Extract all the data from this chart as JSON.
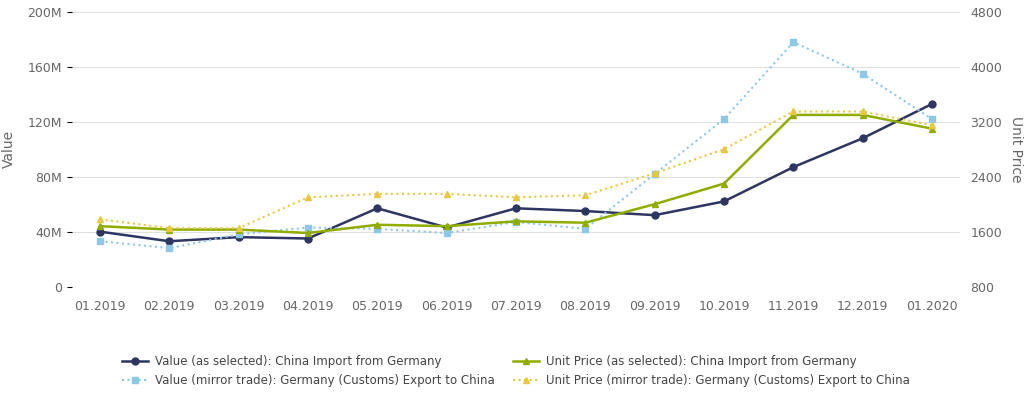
{
  "x_labels": [
    "01.2019",
    "02.2019",
    "03.2019",
    "04.2019",
    "05.2019",
    "06.2019",
    "07.2019",
    "08.2019",
    "09.2019",
    "10.2019",
    "11.2019",
    "12.2019",
    "01.2020"
  ],
  "value_china_import": [
    40000000.0,
    33000000.0,
    36000000.0,
    35000000.0,
    57000000.0,
    43000000.0,
    57000000.0,
    55000000.0,
    52000000.0,
    62000000.0,
    87000000.0,
    108000000.0,
    133000000.0
  ],
  "value_mirror_trade": [
    33000000.0,
    28000000.0,
    38000000.0,
    43000000.0,
    42000000.0,
    39000000.0,
    47000000.0,
    42000000.0,
    82000000.0,
    122000000.0,
    178000000.0,
    155000000.0,
    122000000.0
  ],
  "unit_price_china_import": [
    1680,
    1630,
    1630,
    1580,
    1700,
    1680,
    1750,
    1730,
    2000,
    2300,
    3300,
    3300,
    3100
  ],
  "unit_price_mirror_trade": [
    1780,
    1650,
    1650,
    2100,
    2150,
    2150,
    2100,
    2130,
    2450,
    2800,
    3350,
    3350,
    3150
  ],
  "color_value_china": "#2d3561",
  "color_value_mirror": "#8ec8e8",
  "color_unit_china": "#8fac00",
  "color_unit_mirror": "#e8c840",
  "ylabel_left": "Value",
  "ylabel_right": "Unit Price",
  "ylim_left": [
    0,
    200000000.0
  ],
  "ylim_right": [
    800,
    4800
  ],
  "yticks_left": [
    0,
    40000000.0,
    80000000.0,
    120000000.0,
    160000000.0,
    200000000.0
  ],
  "yticks_right": [
    800,
    1600,
    2400,
    3200,
    4000,
    4800
  ],
  "ytick_labels_left": [
    "0",
    "40M",
    "80M",
    "120M",
    "160M",
    "200M"
  ],
  "ytick_labels_right": [
    "800",
    "1600",
    "2400",
    "3200",
    "4000",
    "4800"
  ],
  "legend_entries": [
    "Value (as selected): China Import from Germany",
    "Value (mirror trade): Germany (Customs) Export to China",
    "Unit Price (as selected): China Import from Germany",
    "Unit Price (mirror trade): Germany (Customs) Export to China"
  ],
  "bg_color": "#ffffff",
  "grid_color": "#e0e0e0"
}
